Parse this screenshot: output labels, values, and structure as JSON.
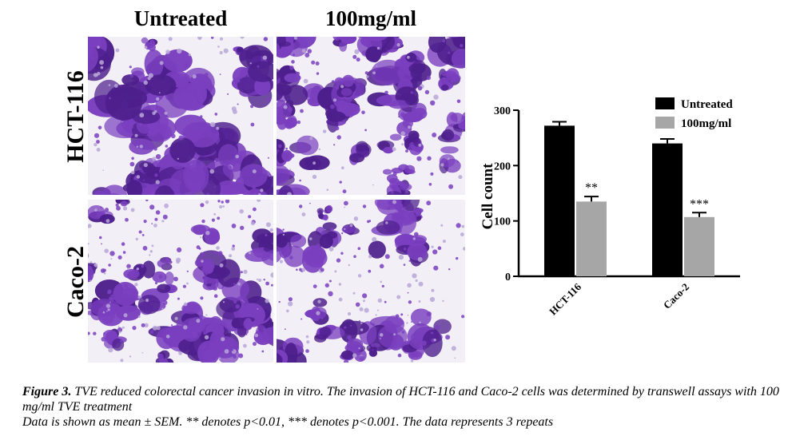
{
  "figure": {
    "columns": [
      "Untreated",
      "100mg/ml"
    ],
    "rows": [
      "HCT-116",
      "Caco-2"
    ],
    "panels": [
      {
        "cell_line": "HCT-116",
        "condition": "Untreated",
        "density": 0.55,
        "clusters": 26,
        "scatter": 110,
        "seed": 11
      },
      {
        "cell_line": "HCT-116",
        "condition": "100mg/ml",
        "density": 0.25,
        "clusters": 34,
        "scatter": 90,
        "seed": 23
      },
      {
        "cell_line": "Caco-2",
        "condition": "Untreated",
        "density": 0.42,
        "clusters": 24,
        "scatter": 200,
        "seed": 37
      },
      {
        "cell_line": "Caco-2",
        "condition": "100mg/ml",
        "density": 0.26,
        "clusters": 20,
        "scatter": 150,
        "seed": 53
      }
    ],
    "stain_color": "#7a3fbf",
    "stain_dark": "#4d1f8c"
  },
  "chart_data": {
    "type": "bar",
    "categories": [
      "HCT-116",
      "Caco-2"
    ],
    "series": [
      {
        "name": "Untreated",
        "values": [
          272,
          240
        ],
        "errors": [
          7,
          8
        ],
        "color": "#000000",
        "significance": [
          "",
          ""
        ]
      },
      {
        "name": "100mg/ml",
        "values": [
          135,
          107
        ],
        "errors": [
          9,
          8
        ],
        "color": "#a6a6a6",
        "significance": [
          "**",
          "***"
        ]
      }
    ],
    "ylabel": "Cell count",
    "ylim": [
      0,
      300
    ],
    "yticks": [
      "0",
      "100",
      "200",
      "300"
    ],
    "legend_position": "top-right",
    "grid": false
  },
  "caption": {
    "label": "Figure 3.",
    "line1": "TVE reduced colorectal cancer invasion in vitro. The invasion of HCT-116 and Caco-2 cells was determined by transwell assays with 100 mg/ml TVE treatment",
    "line2": "Data is shown as mean ± SEM. ** denotes p<0.01, *** denotes p<0.001. The data represents 3 repeats"
  }
}
